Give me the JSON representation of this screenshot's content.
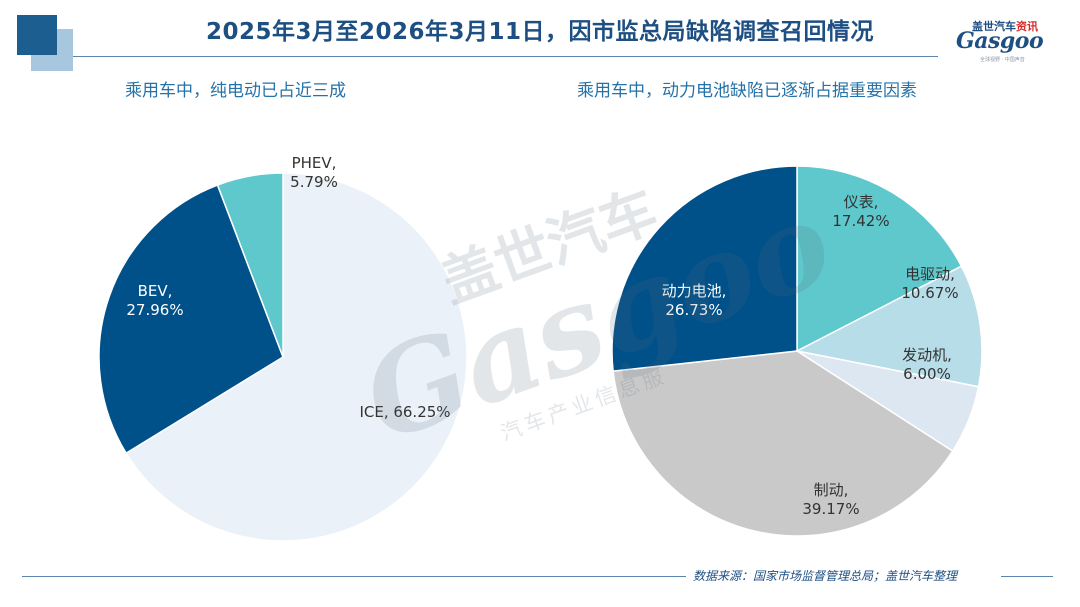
{
  "header": {
    "title": "2025年3月至2026年3月11日，因市监总局缺陷调查召回情况"
  },
  "logo": {
    "brand_cn_a": "盖世汽车",
    "brand_cn_b": "资讯",
    "brand_en": "Gasgoo",
    "tagline": "全球视野 · 中国声音"
  },
  "watermark": {
    "cn": "盖世汽车",
    "en": "Gasgoo",
    "service": "汽车产业信息服"
  },
  "colors": {
    "navy": "#00508a",
    "teal": "#5ec8cc",
    "pale": "#eaf1f8",
    "light_blue": "#b7dde8",
    "pale_gray_blue": "#dde7f1",
    "gray": "#c9c9c9"
  },
  "chart_data": [
    {
      "type": "pie",
      "title": "乘用车中，纯电动已占近三成",
      "labels": [
        "ICE",
        "BEV",
        "PHEV"
      ],
      "values": [
        66.25,
        27.96,
        5.79
      ],
      "display_labels": [
        "ICE, 66.25%",
        "BEV,",
        "PHEV,"
      ],
      "display_values": [
        "",
        "27.96%",
        "5.79%"
      ]
    },
    {
      "type": "pie",
      "title": "乘用车中，动力电池缺陷已逐渐占据重要因素",
      "labels": [
        "仪表",
        "电驱动",
        "发动机",
        "制动",
        "动力电池"
      ],
      "values": [
        17.42,
        10.67,
        6.0,
        39.17,
        26.73
      ],
      "display_labels": [
        "仪表,",
        "电驱动,",
        "发动机,",
        "制动,",
        "动力电池,"
      ],
      "display_values": [
        "17.42%",
        "10.67%",
        "6.00%",
        "39.17%",
        "26.73%"
      ]
    }
  ],
  "source": {
    "text": "数据来源：国家市场监督管理总局；盖世汽车整理"
  }
}
